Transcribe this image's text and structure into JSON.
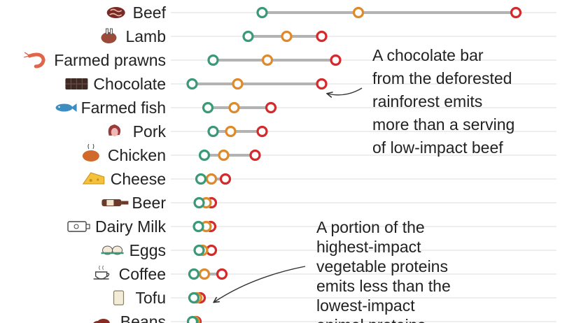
{
  "chart_data": {
    "type": "dot-range",
    "title": "",
    "xlabel": "",
    "ylabel": "",
    "grid": true,
    "legend": "none",
    "categories": [
      "Beef",
      "Lamb",
      "Farmed prawns",
      "Chocolate",
      "Farmed fish",
      "Pork",
      "Chicken",
      "Cheese",
      "Beer",
      "Dairy Milk",
      "Eggs",
      "Coffee",
      "Tofu",
      "Beans"
    ],
    "icons": [
      "steak-icon",
      "lamb-roast-icon",
      "prawn-icon",
      "chocolate-bar-icon",
      "fish-icon",
      "ham-icon",
      "roast-chicken-icon",
      "cheese-icon",
      "beer-bottle-icon",
      "milk-carton-icon",
      "eggs-icon",
      "coffee-cup-icon",
      "tofu-icon",
      "beans-icon"
    ],
    "series": [
      {
        "key": "low",
        "color": "#3a9a78",
        "values": [
          20.5,
          16.5,
          6.5,
          0.5,
          5.0,
          6.5,
          4.0,
          3.0,
          2.5,
          2.3,
          2.5,
          1.0,
          1.0,
          0.6
        ]
      },
      {
        "key": "mid",
        "color": "#dd8a2c",
        "values": [
          48.0,
          27.5,
          22.0,
          13.5,
          12.5,
          11.5,
          9.5,
          6.0,
          4.5,
          4.5,
          3.5,
          4.0,
          1.8,
          1.2
        ]
      },
      {
        "key": "high",
        "color": "#d42a2c",
        "values": [
          93.0,
          37.5,
          41.5,
          37.5,
          23.0,
          20.5,
          18.5,
          10.0,
          6.0,
          5.8,
          6.0,
          9.0,
          2.8,
          1.6
        ]
      }
    ],
    "annotations": [
      {
        "lines": [
          "A chocolate bar",
          "from the deforested",
          "rainforest emits",
          "more than a serving",
          "of low-impact beef"
        ]
      },
      {
        "lines": [
          "A portion of the",
          "highest-impact",
          "vegetable proteins",
          "emits less than the",
          "lowest-impact",
          "animal proteins"
        ]
      }
    ]
  }
}
